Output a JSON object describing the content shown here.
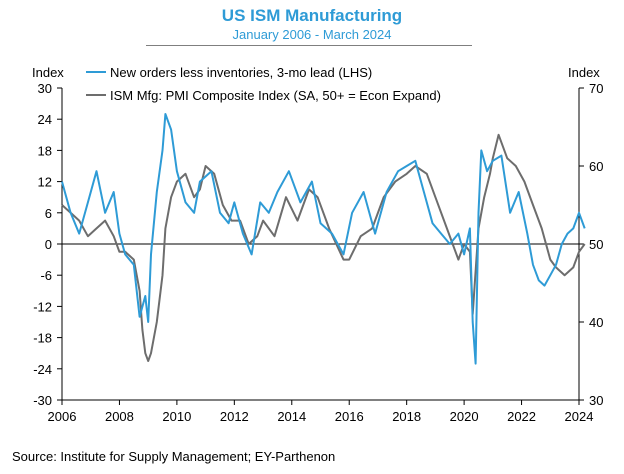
{
  "title": "US ISM Manufacturing",
  "subtitle": "January 2006 - March 2024",
  "source": "Source: Institute for Supply Management; EY-Parthenon",
  "colors": {
    "accent": "#2e9bd6",
    "series_lhs": "#2e9bd6",
    "series_rhs": "#6d6d6d"
  },
  "chart_data": {
    "type": "line",
    "left_axis": {
      "label": "Index",
      "ylim": [
        -30,
        30
      ],
      "ticks": [
        30,
        24,
        18,
        12,
        6,
        0,
        -6,
        -12,
        -18,
        -24,
        -30
      ]
    },
    "right_axis": {
      "label": "Index",
      "ylim": [
        30,
        70
      ],
      "ticks": [
        70,
        60,
        50,
        40,
        30
      ]
    },
    "x_axis": {
      "xlim": [
        2006,
        2024
      ],
      "ticks": [
        2006,
        2008,
        2010,
        2012,
        2014,
        2016,
        2018,
        2020,
        2022,
        2024
      ]
    },
    "grid": false,
    "legend": "top-left",
    "series": [
      {
        "name": "New orders less inventories, 3-mo lead (LHS)",
        "axis": "left",
        "x": [
          2006.0,
          2006.3,
          2006.6,
          2006.9,
          2007.2,
          2007.5,
          2007.8,
          2008.0,
          2008.2,
          2008.5,
          2008.7,
          2008.9,
          2009.0,
          2009.1,
          2009.3,
          2009.5,
          2009.6,
          2009.8,
          2010.0,
          2010.3,
          2010.6,
          2010.8,
          2011.2,
          2011.5,
          2011.8,
          2012.0,
          2012.3,
          2012.6,
          2012.9,
          2013.2,
          2013.5,
          2013.9,
          2014.3,
          2014.7,
          2015.0,
          2015.4,
          2015.8,
          2016.1,
          2016.5,
          2016.9,
          2017.3,
          2017.7,
          2018.0,
          2018.3,
          2018.6,
          2018.9,
          2019.2,
          2019.5,
          2019.8,
          2020.0,
          2020.2,
          2020.3,
          2020.4,
          2020.5,
          2020.6,
          2020.8,
          2021.0,
          2021.3,
          2021.6,
          2021.9,
          2022.2,
          2022.4,
          2022.6,
          2022.8,
          2023.0,
          2023.2,
          2023.4,
          2023.6,
          2023.8,
          2024.0,
          2024.2
        ],
        "y": [
          12,
          6,
          2,
          8,
          14,
          6,
          10,
          2,
          -2,
          -4,
          -14,
          -10,
          -15,
          -2,
          10,
          18,
          25,
          22,
          14,
          8,
          6,
          12,
          14,
          6,
          4,
          8,
          2,
          -2,
          8,
          6,
          10,
          14,
          8,
          12,
          4,
          2,
          -2,
          6,
          10,
          2,
          10,
          14,
          15,
          16,
          10,
          4,
          2,
          0,
          2,
          -2,
          3,
          -15,
          -23,
          6,
          18,
          14,
          16,
          17,
          6,
          10,
          2,
          -4,
          -7,
          -8,
          -6,
          -4,
          0,
          2,
          3,
          6,
          3
        ]
      },
      {
        "name": "ISM Mfg: PMI Composite Index (SA, 50+ = Econ Expand)",
        "axis": "right",
        "x": [
          2006.0,
          2006.3,
          2006.6,
          2006.9,
          2007.2,
          2007.5,
          2007.8,
          2008.0,
          2008.2,
          2008.5,
          2008.7,
          2008.8,
          2008.9,
          2009.0,
          2009.1,
          2009.3,
          2009.5,
          2009.6,
          2009.8,
          2010.0,
          2010.3,
          2010.6,
          2010.8,
          2011.0,
          2011.3,
          2011.6,
          2011.9,
          2012.2,
          2012.5,
          2012.8,
          2013.0,
          2013.4,
          2013.8,
          2014.2,
          2014.6,
          2014.9,
          2015.3,
          2015.8,
          2016.0,
          2016.4,
          2016.8,
          2017.2,
          2017.6,
          2018.0,
          2018.3,
          2018.7,
          2019.0,
          2019.4,
          2019.8,
          2020.0,
          2020.2,
          2020.3,
          2020.5,
          2020.7,
          2020.9,
          2021.0,
          2021.2,
          2021.5,
          2021.8,
          2022.1,
          2022.4,
          2022.7,
          2023.0,
          2023.2,
          2023.5,
          2023.8,
          2024.0,
          2024.2
        ],
        "y": [
          55,
          54,
          53,
          51,
          52,
          53,
          51,
          49,
          49,
          48,
          44,
          39,
          36,
          35,
          36,
          40,
          46,
          52,
          56,
          58,
          59,
          56,
          57,
          60,
          59,
          55,
          53,
          53,
          50,
          51,
          53,
          51,
          56,
          53,
          57,
          56,
          52,
          48,
          48,
          51,
          52,
          56,
          58,
          59,
          60,
          59,
          56,
          52,
          48,
          50,
          49,
          41,
          52,
          56,
          59,
          61,
          64,
          61,
          60,
          58,
          55,
          52,
          48,
          47,
          46,
          47,
          49,
          50
        ]
      }
    ]
  }
}
